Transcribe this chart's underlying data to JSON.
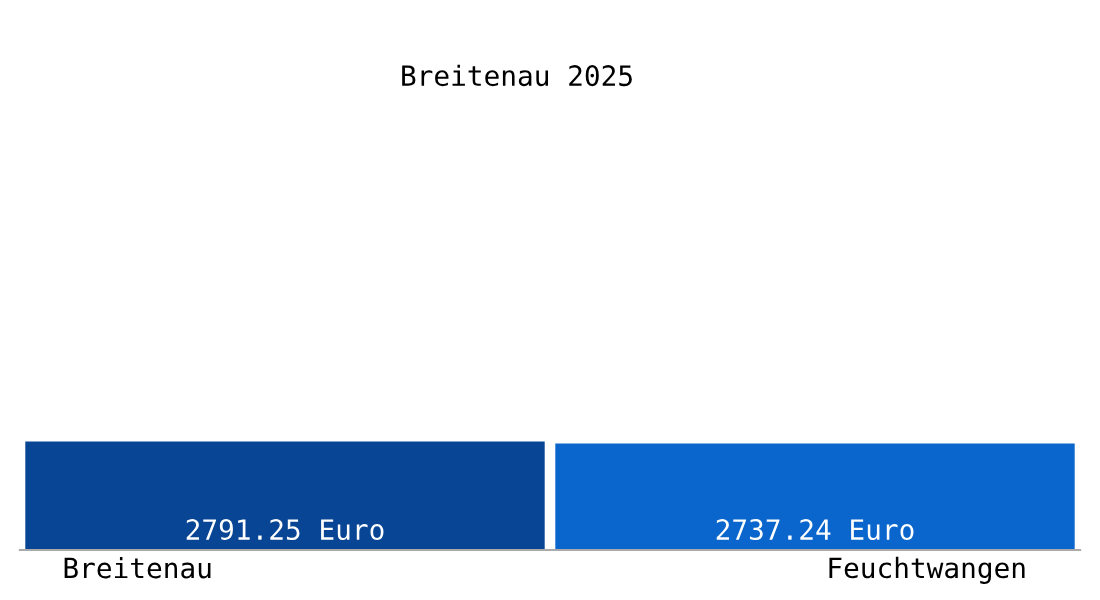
{
  "chart_data": {
    "type": "bar",
    "title": "Breitenau 2025",
    "categories": [
      "Breitenau",
      "Feuchtwangen"
    ],
    "values": [
      2791.25,
      2737.24
    ],
    "colors": [
      "#084594",
      "#0a66cc"
    ],
    "value_labels": [
      "2791.25 Euro",
      "2737.24 Euro"
    ]
  }
}
